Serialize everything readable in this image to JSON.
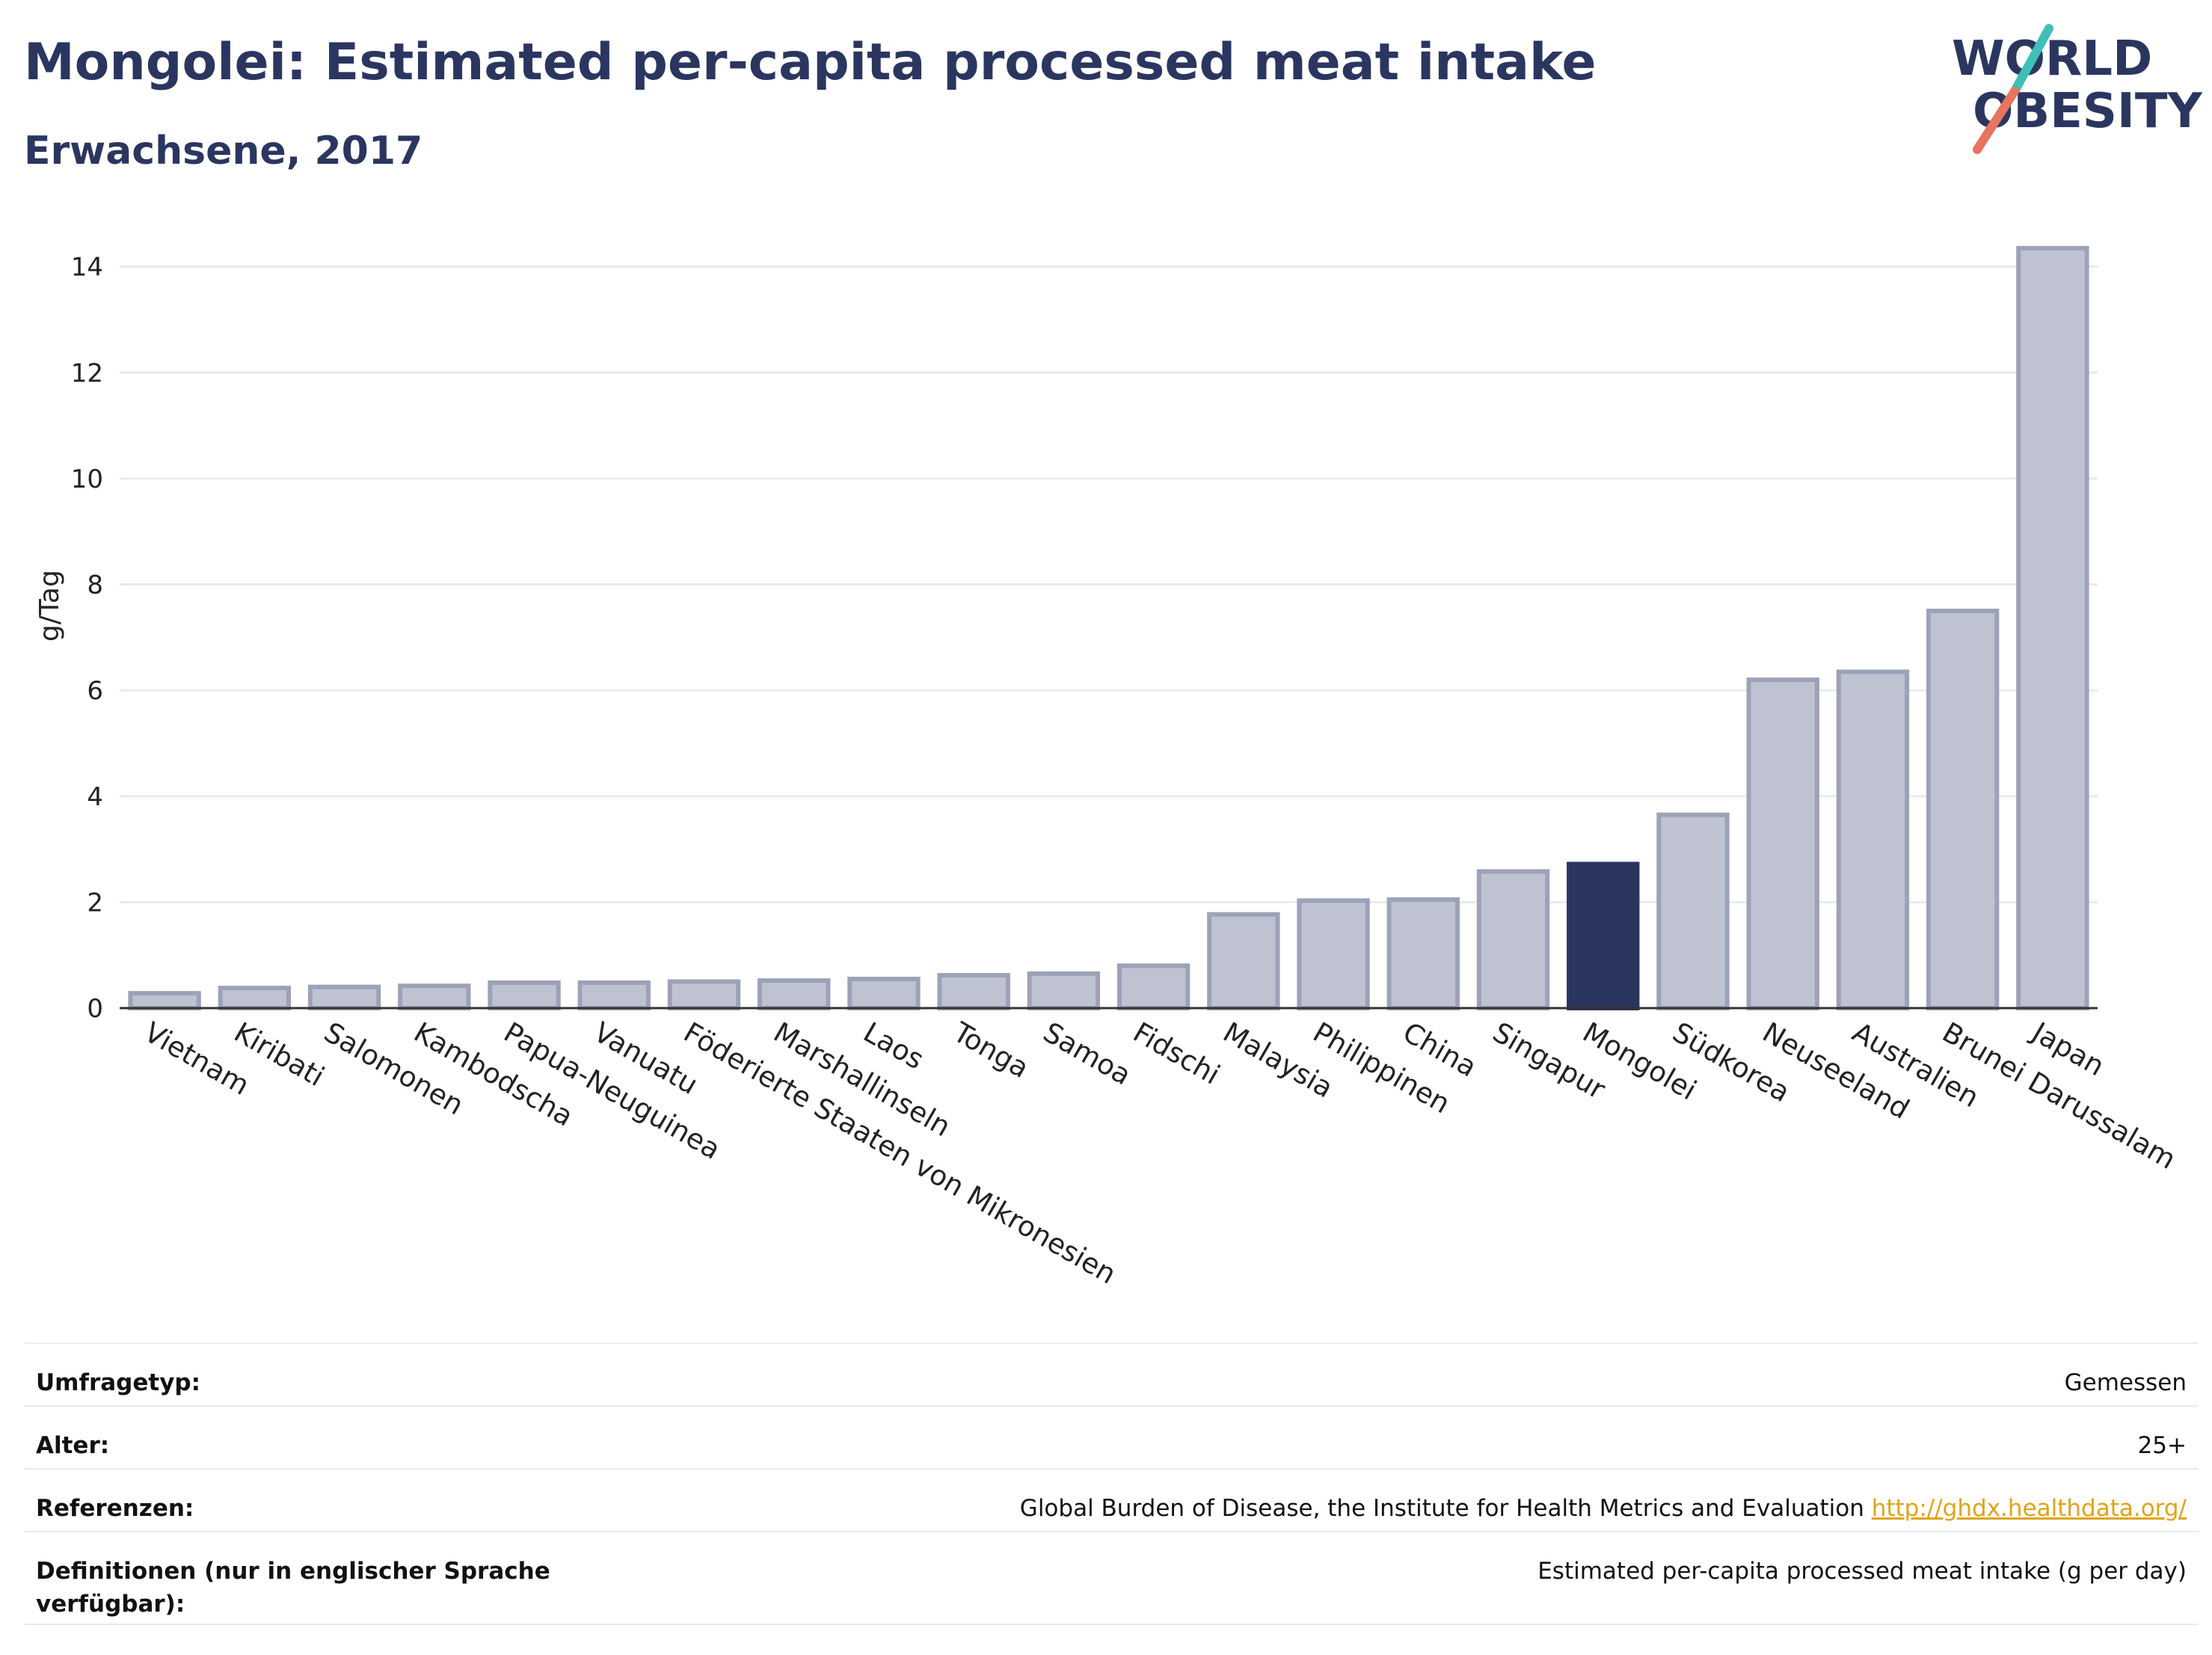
{
  "header": {
    "title": "Mongolei: Estimated per-capita processed meat intake",
    "subtitle": "Erwachsene, 2017"
  },
  "logo": {
    "line1": "WORLD",
    "line2": "OBESITY"
  },
  "colors": {
    "bar": "#bfc3d1",
    "bar_stroke": "#9ca2b8",
    "highlight": "#2b3660",
    "grid": "#e6ecf0",
    "axis": "#333333"
  },
  "chart_data": {
    "type": "bar",
    "ylabel": "g/Tag",
    "ylim": [
      0,
      14.8
    ],
    "yticks": [
      0,
      2,
      4,
      6,
      8,
      10,
      12,
      14
    ],
    "grid": true,
    "highlight": "Mongolei",
    "categories": [
      "Vietnam",
      "Kiribati",
      "Salomonen",
      "Kambodscha",
      "Papua-Neuguinea",
      "Vanuatu",
      "Föderierte Staaten von Mikronesien",
      "Marshallinseln",
      "Laos",
      "Tonga",
      "Samoa",
      "Fidschi",
      "Malaysia",
      "Philippinen",
      "China",
      "Singapur",
      "Mongolei",
      "Südkorea",
      "Neuseeland",
      "Australien",
      "Brunei Darussalam",
      "Japan"
    ],
    "values": [
      0.28,
      0.38,
      0.4,
      0.42,
      0.48,
      0.48,
      0.5,
      0.52,
      0.55,
      0.62,
      0.65,
      0.8,
      1.77,
      2.03,
      2.05,
      2.58,
      2.72,
      3.65,
      6.2,
      6.35,
      7.5,
      14.35
    ]
  },
  "meta": [
    {
      "label": "Umfragetyp:",
      "value": "Gemessen"
    },
    {
      "label": "Alter:",
      "value": "25+"
    },
    {
      "label": "Referenzen:",
      "value": "Global Burden of Disease, the Institute for Health Metrics and Evaluation",
      "link": "http://ghdx.healthdata.org/"
    },
    {
      "label": "Definitionen (nur in englischer Sprache verfügbar):",
      "value": "Estimated per-capita processed meat intake (g per day)"
    }
  ]
}
